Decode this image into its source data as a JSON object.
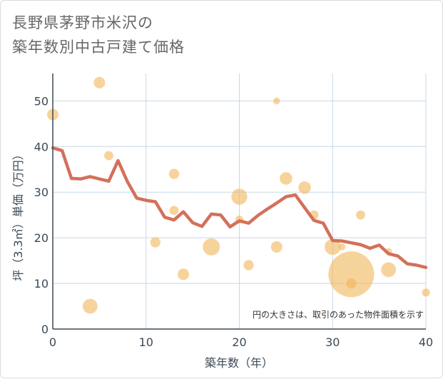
{
  "title_line1": "長野県茅野市米沢の",
  "title_line2": "築年数別中古戸建て価格",
  "chart_data": {
    "type": "scatter+line",
    "title": "長野県茅野市米沢の築年数別中古戸建て価格",
    "xlabel": "築年数（年）",
    "ylabel": "坪（3.3㎡）単価（万円）",
    "xlim": [
      0,
      40
    ],
    "ylim": [
      0,
      56
    ],
    "xticks": [
      0,
      10,
      20,
      30,
      40
    ],
    "yticks": [
      0,
      10,
      20,
      30,
      40,
      50
    ],
    "grid": true,
    "note": "円の大きさは、取引のあった物件面積を示す",
    "colors": {
      "line": "#d4705a",
      "bubble": "#f2b55a",
      "grid": "#c8d8e6",
      "axis": "#3d4a57"
    },
    "scatter": [
      {
        "x": 0,
        "y": 47,
        "size": 1.0
      },
      {
        "x": 4,
        "y": 5,
        "size": 1.3
      },
      {
        "x": 5,
        "y": 54,
        "size": 1.0
      },
      {
        "x": 6,
        "y": 38,
        "size": 0.8
      },
      {
        "x": 11,
        "y": 19,
        "size": 0.9
      },
      {
        "x": 13,
        "y": 34,
        "size": 0.9
      },
      {
        "x": 13,
        "y": 26,
        "size": 0.8
      },
      {
        "x": 14,
        "y": 12,
        "size": 1.0
      },
      {
        "x": 17,
        "y": 18,
        "size": 1.5
      },
      {
        "x": 20,
        "y": 29,
        "size": 1.4
      },
      {
        "x": 20,
        "y": 24,
        "size": 0.7
      },
      {
        "x": 21,
        "y": 14,
        "size": 0.9
      },
      {
        "x": 24,
        "y": 50,
        "size": 0.6
      },
      {
        "x": 24,
        "y": 18,
        "size": 1.0
      },
      {
        "x": 25,
        "y": 33,
        "size": 1.1
      },
      {
        "x": 27,
        "y": 31,
        "size": 1.1
      },
      {
        "x": 28,
        "y": 25,
        "size": 0.8
      },
      {
        "x": 30,
        "y": 18,
        "size": 1.4
      },
      {
        "x": 31,
        "y": 18,
        "size": 0.6
      },
      {
        "x": 32,
        "y": 12,
        "size": 4.0
      },
      {
        "x": 32,
        "y": 10,
        "size": 0.9
      },
      {
        "x": 33,
        "y": 25,
        "size": 0.8
      },
      {
        "x": 36,
        "y": 13,
        "size": 1.3
      },
      {
        "x": 36,
        "y": 17,
        "size": 0.6
      },
      {
        "x": 40,
        "y": 8,
        "size": 0.7
      }
    ],
    "line": {
      "x": [
        0,
        1,
        2,
        3,
        4,
        5,
        6,
        7,
        8,
        9,
        10,
        11,
        12,
        13,
        14,
        15,
        16,
        17,
        18,
        19,
        20,
        21,
        22,
        23,
        24,
        25,
        26,
        27,
        28,
        29,
        30,
        31,
        32,
        33,
        34,
        35,
        36,
        37,
        38,
        39,
        40
      ],
      "y": [
        39.7,
        39.1,
        33.0,
        32.9,
        33.4,
        32.9,
        32.4,
        36.9,
        32.3,
        28.7,
        28.2,
        27.9,
        24.5,
        23.9,
        25.7,
        23.3,
        22.5,
        25.2,
        25.0,
        22.4,
        23.7,
        23.2,
        24.9,
        26.3,
        27.6,
        29.0,
        29.4,
        26.6,
        23.8,
        23.2,
        19.4,
        19.3,
        18.9,
        18.5,
        17.7,
        18.4,
        16.5,
        16.0,
        14.3,
        14.0,
        13.5
      ]
    }
  }
}
